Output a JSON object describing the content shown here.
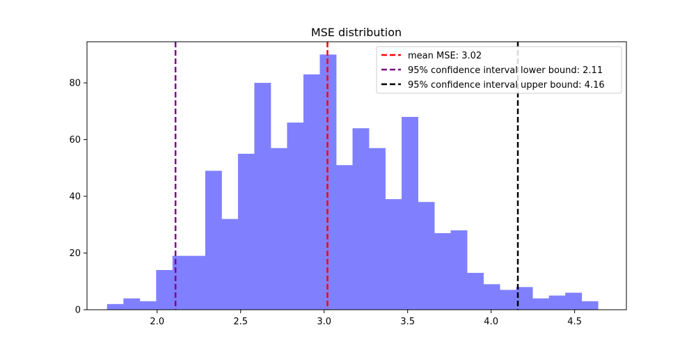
{
  "chart_data": {
    "type": "histogram",
    "title": "MSE distribution",
    "xlabel": "",
    "ylabel": "",
    "xlim": [
      1.58,
      4.81
    ],
    "ylim": [
      0,
      94.5
    ],
    "xticks": [
      2.0,
      2.5,
      3.0,
      3.5,
      4.0,
      4.5
    ],
    "yticks": [
      0,
      20,
      40,
      60,
      80
    ],
    "grid": false,
    "bar_color": "#8080ff",
    "bin_start": 1.7,
    "bin_width": 0.098,
    "counts": [
      2,
      4,
      3,
      14,
      19,
      19,
      49,
      32,
      55,
      80,
      57,
      66,
      83,
      90,
      51,
      64,
      57,
      39,
      68,
      38,
      27,
      28,
      13,
      9,
      7,
      8,
      4,
      5,
      6,
      3
    ],
    "vlines": [
      {
        "label": "mean MSE: 3.02",
        "x": 3.02,
        "color": "#ff0000"
      },
      {
        "label": "95% confidence interval lower bound: 2.11",
        "x": 2.11,
        "color": "#800080"
      },
      {
        "label": "95% confidence interval upper bound: 4.16",
        "x": 4.16,
        "color": "#000000"
      }
    ],
    "legend_position": "top-right"
  }
}
